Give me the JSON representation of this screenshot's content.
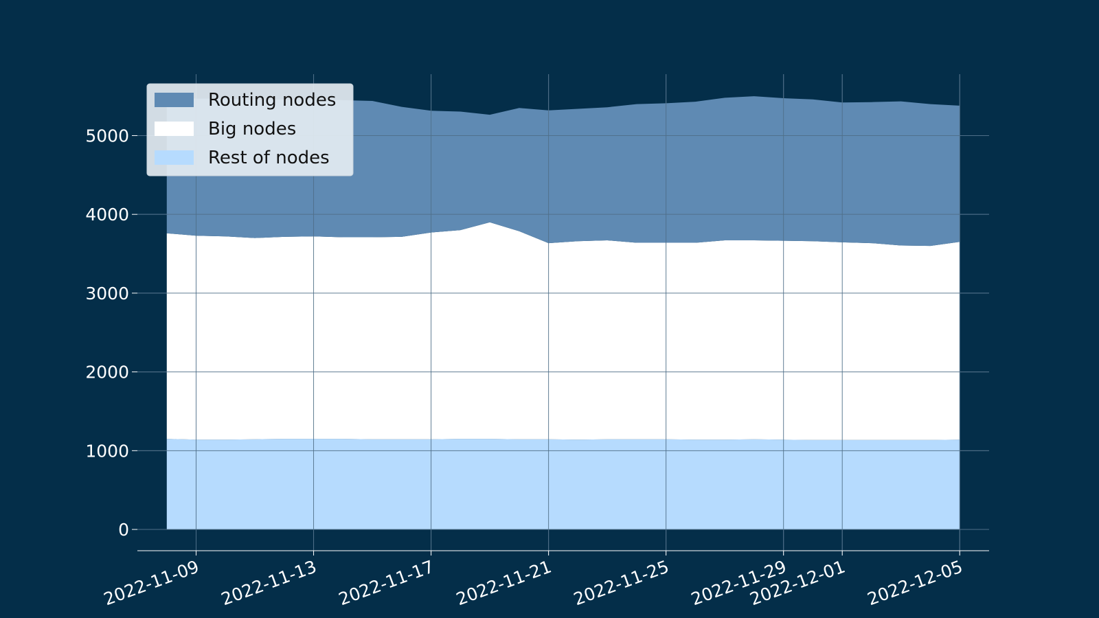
{
  "colors": {
    "background": "#042e49",
    "grid": "#4f6f88",
    "axis": "#ffffff",
    "legend_bg": "#e4ebf2"
  },
  "chart_data": {
    "type": "area",
    "stacked": true,
    "x": [
      "2022-11-08",
      "2022-11-09",
      "2022-11-10",
      "2022-11-11",
      "2022-11-12",
      "2022-11-13",
      "2022-11-14",
      "2022-11-15",
      "2022-11-16",
      "2022-11-17",
      "2022-11-18",
      "2022-11-19",
      "2022-11-20",
      "2022-11-21",
      "2022-11-22",
      "2022-11-23",
      "2022-11-24",
      "2022-11-25",
      "2022-11-26",
      "2022-11-27",
      "2022-11-28",
      "2022-11-29",
      "2022-11-30",
      "2022-12-01",
      "2022-12-02",
      "2022-12-03",
      "2022-12-04",
      "2022-12-05"
    ],
    "series": [
      {
        "name": "Rest of nodes",
        "color": "#b6dbfe",
        "values": [
          1150,
          1140,
          1140,
          1145,
          1150,
          1150,
          1150,
          1145,
          1145,
          1145,
          1150,
          1150,
          1145,
          1145,
          1140,
          1145,
          1145,
          1145,
          1140,
          1140,
          1145,
          1140,
          1135,
          1135,
          1135,
          1135,
          1135,
          1140
        ]
      },
      {
        "name": "Big nodes",
        "color": "#ffffff",
        "values": [
          2610,
          2590,
          2580,
          2555,
          2565,
          2570,
          2560,
          2565,
          2570,
          2625,
          2650,
          2750,
          2640,
          2490,
          2520,
          2525,
          2495,
          2495,
          2500,
          2530,
          2525,
          2525,
          2525,
          2510,
          2500,
          2470,
          2465,
          2510
        ]
      },
      {
        "name": "Routing nodes",
        "color": "#5f8ab3",
        "values": [
          1740,
          1740,
          1750,
          1755,
          1740,
          1740,
          1740,
          1730,
          1650,
          1545,
          1505,
          1365,
          1565,
          1685,
          1680,
          1690,
          1760,
          1770,
          1790,
          1810,
          1830,
          1810,
          1800,
          1775,
          1790,
          1830,
          1800,
          1730
        ]
      }
    ],
    "xticks": [
      "2022-11-09",
      "2022-11-13",
      "2022-11-17",
      "2022-11-21",
      "2022-11-25",
      "2022-11-29",
      "2022-12-01",
      "2022-12-05"
    ],
    "yticks": [
      0,
      1000,
      2000,
      3000,
      4000,
      5000
    ],
    "ylim": [
      -270,
      5780
    ],
    "xlim": [
      "2022-11-07",
      "2022-12-06"
    ],
    "grid": true,
    "legend": {
      "placement": "top-left",
      "entries": [
        "Routing nodes",
        "Big nodes",
        "Rest of nodes"
      ]
    },
    "title": "",
    "xlabel": "",
    "ylabel": ""
  }
}
